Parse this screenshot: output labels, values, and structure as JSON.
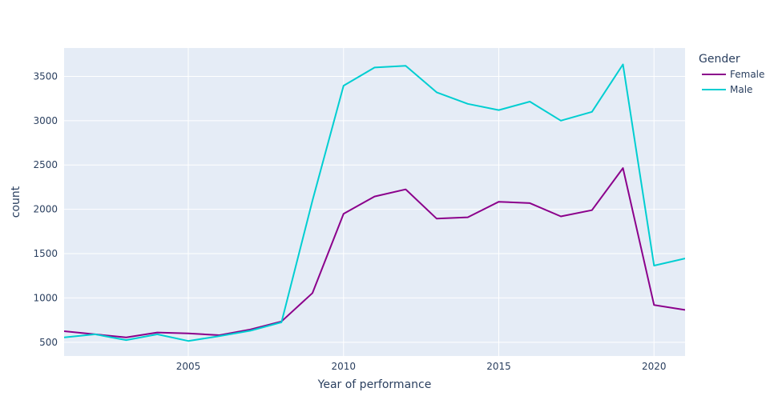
{
  "chart_data": {
    "type": "line",
    "title": "",
    "xlabel": "Year of performance",
    "ylabel": "count",
    "xlim": [
      2001,
      2021
    ],
    "ylim": [
      345,
      3820
    ],
    "x_ticks": [
      2005,
      2010,
      2015,
      2020
    ],
    "y_ticks": [
      500,
      1000,
      1500,
      2000,
      2500,
      3000,
      3500
    ],
    "grid": true,
    "background": "#E5ECF6",
    "legend": {
      "title": "Gender",
      "placement": "right"
    },
    "x": [
      2001,
      2002,
      2003,
      2004,
      2005,
      2006,
      2007,
      2008,
      2009,
      2010,
      2011,
      2012,
      2013,
      2014,
      2015,
      2016,
      2017,
      2018,
      2019,
      2020,
      2021
    ],
    "series": [
      {
        "name": "Female",
        "color": "#8B008B",
        "values": [
          625,
          590,
          555,
          610,
          600,
          580,
          645,
          735,
          1055,
          1950,
          2145,
          2225,
          1895,
          1910,
          2085,
          2070,
          1920,
          1990,
          2465,
          920,
          865
        ]
      },
      {
        "name": "Male",
        "color": "#00CED1",
        "values": [
          555,
          590,
          525,
          590,
          515,
          570,
          630,
          725,
          2100,
          3395,
          3600,
          3620,
          3320,
          3190,
          3120,
          3215,
          3000,
          3100,
          3635,
          1365,
          1445
        ]
      }
    ]
  }
}
